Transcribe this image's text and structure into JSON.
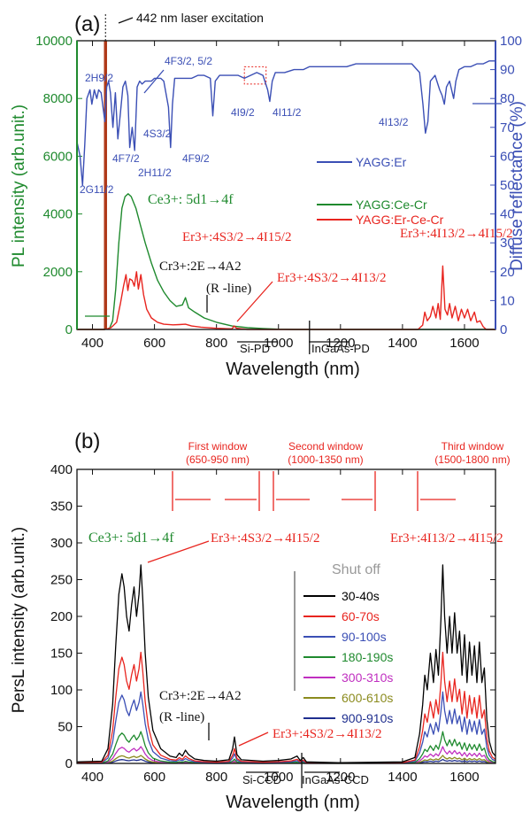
{
  "chart_data": [
    {
      "panel": "(a)",
      "type": "line",
      "xlabel": "Wavelength (nm)",
      "ylabel_left": "PL intensity (arb.unit.)",
      "ylabel_right": "Diffuse reflectance (%)",
      "xlim": [
        350,
        1700
      ],
      "ylim_left": [
        0,
        10000
      ],
      "ylim_right": [
        0,
        100
      ],
      "x_ticks": [
        400,
        600,
        800,
        1000,
        1200,
        1400,
        1600
      ],
      "y_ticks_left": [
        0,
        2000,
        4000,
        6000,
        8000,
        10000
      ],
      "y_ticks_right": [
        0,
        10,
        20,
        30,
        40,
        50,
        60,
        70,
        80,
        90,
        100
      ],
      "legend": [
        "YAGG:Er",
        "YAGG:Ce-Cr",
        "YAGG:Er-Ce-Cr"
      ],
      "series": [
        {
          "name": "YAGG:Er",
          "axis": "right",
          "color": "#3b4fb5",
          "points": [
            [
              350,
              65
            ],
            [
              360,
              60
            ],
            [
              368,
              50
            ],
            [
              375,
              64
            ],
            [
              382,
              80
            ],
            [
              392,
              83
            ],
            [
              398,
              78
            ],
            [
              406,
              83
            ],
            [
              414,
              80
            ],
            [
              420,
              83
            ],
            [
              428,
              82
            ],
            [
              440,
              72
            ],
            [
              446,
              84
            ],
            [
              452,
              86
            ],
            [
              458,
              82
            ],
            [
              466,
              70
            ],
            [
              474,
              82
            ],
            [
              482,
              66
            ],
            [
              490,
              75
            ],
            [
              498,
              84
            ],
            [
              506,
              86
            ],
            [
              514,
              81
            ],
            [
              520,
              63
            ],
            [
              528,
              70
            ],
            [
              536,
              62
            ],
            [
              544,
              84
            ],
            [
              552,
              86
            ],
            [
              560,
              85
            ],
            [
              570,
              86
            ],
            [
              580,
              86
            ],
            [
              590,
              86
            ],
            [
              600,
              87
            ],
            [
              610,
              87
            ],
            [
              620,
              87
            ],
            [
              630,
              86
            ],
            [
              645,
              77
            ],
            [
              652,
              63
            ],
            [
              658,
              78
            ],
            [
              665,
              87
            ],
            [
              680,
              87
            ],
            [
              700,
              87
            ],
            [
              720,
              87
            ],
            [
              740,
              88
            ],
            [
              760,
              88
            ],
            [
              780,
              87
            ],
            [
              788,
              74
            ],
            [
              796,
              86
            ],
            [
              810,
              88
            ],
            [
              830,
              88
            ],
            [
              850,
              88
            ],
            [
              870,
              88
            ],
            [
              890,
              87
            ],
            [
              910,
              88
            ],
            [
              930,
              89
            ],
            [
              950,
              88
            ],
            [
              965,
              83
            ],
            [
              972,
              79
            ],
            [
              980,
              86
            ],
            [
              990,
              89
            ],
            [
              1020,
              89
            ],
            [
              1050,
              90
            ],
            [
              1080,
              90
            ],
            [
              1100,
              91
            ],
            [
              1130,
              91
            ],
            [
              1160,
              91
            ],
            [
              1190,
              91
            ],
            [
              1220,
              91
            ],
            [
              1250,
              92
            ],
            [
              1280,
              92
            ],
            [
              1310,
              92
            ],
            [
              1340,
              92
            ],
            [
              1370,
              92
            ],
            [
              1400,
              92
            ],
            [
              1430,
              92
            ],
            [
              1455,
              89
            ],
            [
              1466,
              78
            ],
            [
              1474,
              68
            ],
            [
              1482,
              72
            ],
            [
              1490,
              86
            ],
            [
              1505,
              88
            ],
            [
              1520,
              83
            ],
            [
              1528,
              81
            ],
            [
              1535,
              78
            ],
            [
              1542,
              84
            ],
            [
              1552,
              86
            ],
            [
              1565,
              80
            ],
            [
              1572,
              86
            ],
            [
              1582,
              90
            ],
            [
              1600,
              91
            ],
            [
              1620,
              91
            ],
            [
              1640,
              92
            ],
            [
              1660,
              92
            ],
            [
              1680,
              93
            ],
            [
              1700,
              93
            ]
          ]
        },
        {
          "name": "YAGG:Ce-Cr",
          "axis": "left",
          "color": "#1f8a2e",
          "points": [
            [
              350,
              0
            ],
            [
              440,
              0
            ],
            [
              455,
              40
            ],
            [
              465,
              300
            ],
            [
              475,
              1400
            ],
            [
              485,
              3000
            ],
            [
              495,
              4200
            ],
            [
              505,
              4600
            ],
            [
              515,
              4700
            ],
            [
              525,
              4600
            ],
            [
              540,
              4200
            ],
            [
              555,
              3600
            ],
            [
              570,
              3000
            ],
            [
              590,
              2300
            ],
            [
              610,
              1700
            ],
            [
              630,
              1300
            ],
            [
              650,
              1000
            ],
            [
              670,
              800
            ],
            [
              690,
              850
            ],
            [
              700,
              1100
            ],
            [
              710,
              750
            ],
            [
              730,
              600
            ],
            [
              760,
              400
            ],
            [
              800,
              250
            ],
            [
              850,
              120
            ],
            [
              900,
              60
            ],
            [
              950,
              30
            ],
            [
              1000,
              10
            ],
            [
              1050,
              0
            ],
            [
              1700,
              0
            ]
          ]
        },
        {
          "name": "YAGG:Er-Ce-Cr",
          "axis": "left",
          "color": "#e8251f",
          "points": [
            [
              350,
              0
            ],
            [
              440,
              0
            ],
            [
              460,
              60
            ],
            [
              478,
              250
            ],
            [
              490,
              900
            ],
            [
              500,
              1500
            ],
            [
              508,
              1900
            ],
            [
              514,
              1350
            ],
            [
              520,
              1750
            ],
            [
              528,
              1700
            ],
            [
              535,
              1500
            ],
            [
              542,
              2000
            ],
            [
              548,
              1400
            ],
            [
              556,
              1900
            ],
            [
              565,
              1200
            ],
            [
              575,
              700
            ],
            [
              590,
              400
            ],
            [
              610,
              250
            ],
            [
              630,
              180
            ],
            [
              660,
              160
            ],
            [
              680,
              170
            ],
            [
              700,
              180
            ],
            [
              720,
              120
            ],
            [
              750,
              80
            ],
            [
              800,
              40
            ],
            [
              850,
              20
            ],
            [
              857,
              120
            ],
            [
              865,
              40
            ],
            [
              900,
              0
            ],
            [
              1450,
              0
            ],
            [
              1465,
              150
            ],
            [
              1472,
              600
            ],
            [
              1480,
              300
            ],
            [
              1490,
              450
            ],
            [
              1498,
              800
            ],
            [
              1508,
              400
            ],
            [
              1515,
              900
            ],
            [
              1522,
              350
            ],
            [
              1530,
              2200
            ],
            [
              1537,
              700
            ],
            [
              1545,
              500
            ],
            [
              1552,
              900
            ],
            [
              1560,
              400
            ],
            [
              1570,
              800
            ],
            [
              1580,
              300
            ],
            [
              1590,
              700
            ],
            [
              1600,
              400
            ],
            [
              1610,
              700
            ],
            [
              1620,
              300
            ],
            [
              1632,
              600
            ],
            [
              1640,
              250
            ],
            [
              1650,
              300
            ],
            [
              1660,
              100
            ],
            [
              1670,
              0
            ],
            [
              1700,
              0
            ]
          ]
        }
      ],
      "annotations": {
        "panel_label": "(a)",
        "laser": "442 nm laser excitation",
        "ce": "Ce3+: 5d1→4f",
        "cr": "Cr3+:2E→4A2",
        "rline": "(R -line)",
        "er_green_15": "Er3+:4S3/2→4I15/2",
        "er_green_13": "Er3+:4S3/2→4I13/2",
        "er_ir": "Er3+:4I13/2→4I15/2",
        "levels": [
          "2H9/2",
          "4F3/2, 5/2",
          "4S3/2",
          "4F7/2",
          "2H11/2",
          "4F9/2",
          "4I9/2",
          "4I11/2",
          "4I13/2",
          "2G11/2"
        ],
        "detector_left": "Si-PD",
        "detector_right": "InGaAs-PD"
      }
    },
    {
      "panel": "(b)",
      "type": "line",
      "xlabel": "Wavelength (nm)",
      "ylabel": "PersL intensity (arb.unit.)",
      "xlim": [
        350,
        1700
      ],
      "ylim": [
        0,
        400
      ],
      "x_ticks": [
        400,
        600,
        800,
        1000,
        1200,
        1400,
        1600
      ],
      "y_ticks": [
        0,
        50,
        100,
        150,
        200,
        250,
        300,
        350,
        400
      ],
      "legend_title": "Shut off",
      "legend": [
        "30-40s",
        "60-70s",
        "90-100s",
        "180-190s",
        "300-310s",
        "600-610s",
        "900-910s"
      ],
      "series": [
        {
          "name": "30-40s",
          "color": "#000000",
          "scale": 1.0
        },
        {
          "name": "60-70s",
          "color": "#e8251f",
          "scale": 0.56
        },
        {
          "name": "90-100s",
          "color": "#3b4fb5",
          "scale": 0.36
        },
        {
          "name": "180-190s",
          "color": "#1f8a2e",
          "scale": 0.16
        },
        {
          "name": "300-310s",
          "color": "#c02fc0",
          "scale": 0.085
        },
        {
          "name": "600-610s",
          "color": "#8b8b1e",
          "scale": 0.04
        },
        {
          "name": "900-910s",
          "color": "#1f2f8f",
          "scale": 0.02
        }
      ],
      "base_profile": [
        [
          350,
          2
        ],
        [
          430,
          3
        ],
        [
          450,
          20
        ],
        [
          465,
          80
        ],
        [
          475,
          160
        ],
        [
          485,
          230
        ],
        [
          495,
          258
        ],
        [
          502,
          240
        ],
        [
          510,
          200
        ],
        [
          518,
          180
        ],
        [
          526,
          215
        ],
        [
          534,
          240
        ],
        [
          542,
          200
        ],
        [
          550,
          230
        ],
        [
          556,
          270
        ],
        [
          562,
          225
        ],
        [
          570,
          150
        ],
        [
          580,
          90
        ],
        [
          595,
          45
        ],
        [
          620,
          20
        ],
        [
          650,
          10
        ],
        [
          670,
          8
        ],
        [
          680,
          14
        ],
        [
          690,
          10
        ],
        [
          700,
          18
        ],
        [
          710,
          12
        ],
        [
          730,
          6
        ],
        [
          760,
          4
        ],
        [
          800,
          3
        ],
        [
          840,
          5
        ],
        [
          852,
          20
        ],
        [
          858,
          36
        ],
        [
          866,
          12
        ],
        [
          880,
          5
        ],
        [
          950,
          3
        ],
        [
          1000,
          4
        ],
        [
          1040,
          6
        ],
        [
          1060,
          10
        ],
        [
          1070,
          4
        ],
        [
          1080,
          8
        ],
        [
          1090,
          2
        ],
        [
          1200,
          1
        ],
        [
          1400,
          2
        ],
        [
          1440,
          8
        ],
        [
          1455,
          40
        ],
        [
          1465,
          80
        ],
        [
          1472,
          120
        ],
        [
          1480,
          100
        ],
        [
          1490,
          150
        ],
        [
          1500,
          110
        ],
        [
          1508,
          155
        ],
        [
          1516,
          120
        ],
        [
          1524,
          195
        ],
        [
          1530,
          270
        ],
        [
          1536,
          200
        ],
        [
          1544,
          150
        ],
        [
          1552,
          200
        ],
        [
          1560,
          150
        ],
        [
          1568,
          205
        ],
        [
          1576,
          150
        ],
        [
          1584,
          180
        ],
        [
          1592,
          120
        ],
        [
          1600,
          175
        ],
        [
          1608,
          110
        ],
        [
          1616,
          165
        ],
        [
          1624,
          120
        ],
        [
          1632,
          160
        ],
        [
          1640,
          110
        ],
        [
          1648,
          165
        ],
        [
          1656,
          110
        ],
        [
          1664,
          130
        ],
        [
          1672,
          60
        ],
        [
          1680,
          30
        ],
        [
          1690,
          15
        ],
        [
          1700,
          10
        ]
      ],
      "annotations": {
        "panel_label": "(b)",
        "ce": "Ce3+: 5d1→4f",
        "cr": "Cr3+:2E→4A2",
        "rline": "(R -line)",
        "er_green_15": "Er3+:4S3/2→4I15/2",
        "er_green_13": "Er3+:4S3/2→4I13/2",
        "er_ir": "Er3+:4I13/2→4I15/2",
        "window1": [
          "First window",
          "(650-950 nm)"
        ],
        "window2": [
          "Second window",
          "(1000-1350 nm)"
        ],
        "window3": [
          "Third window",
          "(1500-1800 nm)"
        ],
        "detector_left": "Si-CCD",
        "detector_right": "InGaAs-CCD"
      }
    }
  ]
}
